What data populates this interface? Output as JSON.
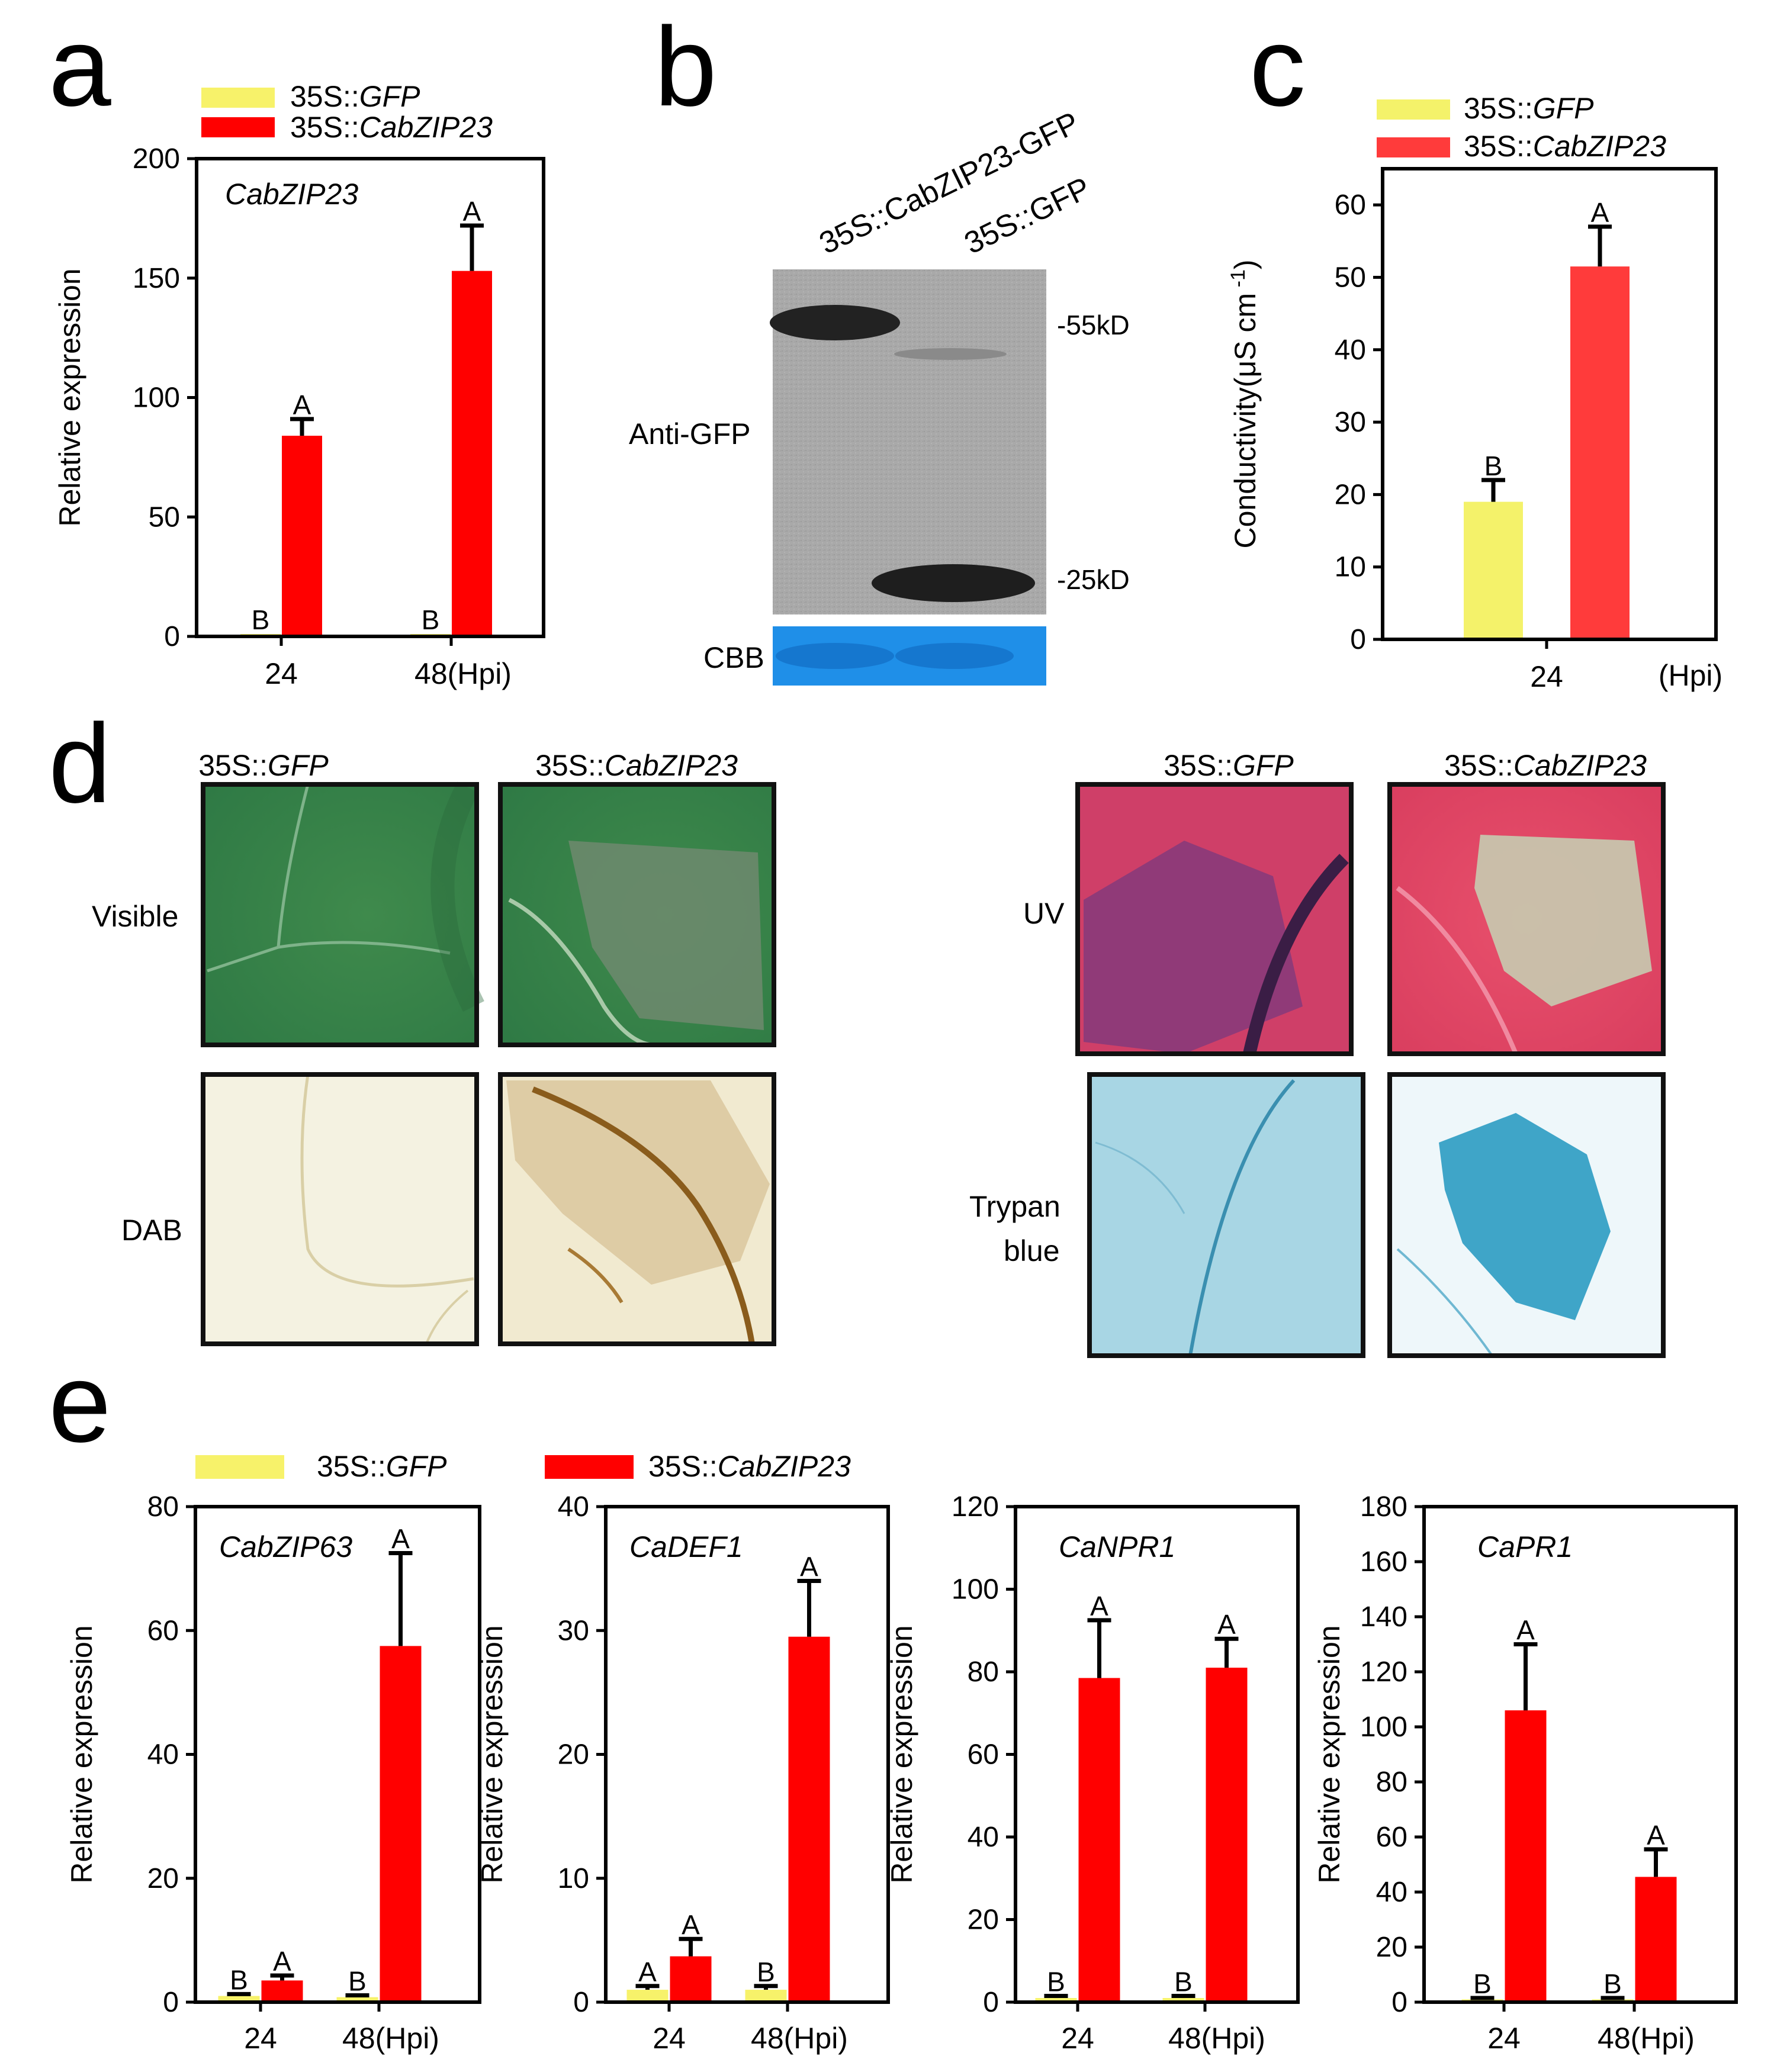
{
  "colors": {
    "gfp": "#f7f26a",
    "cabzip": "#ff0000",
    "cond_gfp": "#f4f26a",
    "cond_cabzip": "#ff3b3b",
    "cbb": "#1f8fe8"
  },
  "panel_letters": {
    "a": "a",
    "b": "b",
    "c": "c",
    "d": "d",
    "e": "e"
  },
  "legend": {
    "prefix": "35S::",
    "gfp": "GFP",
    "cabzip": "CabZIP23"
  },
  "chart_data": [
    {
      "id": "a",
      "type": "bar",
      "title": "CabZIP23",
      "ylabel": "Relative expression",
      "ylim": [
        0,
        200
      ],
      "yticks": [
        0,
        50,
        100,
        150,
        200
      ],
      "categories": [
        "24",
        "48(Hpi)"
      ],
      "series": [
        {
          "name": "35S::GFP",
          "values": [
            1,
            1
          ],
          "errors": [
            0,
            0
          ],
          "letters": [
            "B",
            "B"
          ]
        },
        {
          "name": "35S::CabZIP23",
          "values": [
            84,
            153
          ],
          "errors": [
            7,
            19
          ],
          "letters": [
            "A",
            "A"
          ]
        }
      ]
    },
    {
      "id": "c",
      "type": "bar",
      "title": "",
      "ylabel": "Conductivity(μS cm",
      "ylabel_sup": "-1",
      "ylabel_end": ")",
      "ylim": [
        0,
        65
      ],
      "yticks": [
        0,
        10,
        20,
        30,
        40,
        50,
        60
      ],
      "categories": [
        "24"
      ],
      "unit": "(Hpi)",
      "series": [
        {
          "name": "35S::GFP",
          "values": [
            19
          ],
          "errors": [
            3
          ],
          "letters": [
            "B"
          ]
        },
        {
          "name": "35S::CabZIP23",
          "values": [
            51.5
          ],
          "errors": [
            5.5
          ],
          "letters": [
            "A"
          ]
        }
      ]
    },
    {
      "id": "e1",
      "type": "bar",
      "title": "CabZIP63",
      "ylabel": "Relative expression",
      "ylim": [
        0,
        80
      ],
      "yticks": [
        0,
        20,
        40,
        60,
        80
      ],
      "categories": [
        "24",
        "48(Hpi)"
      ],
      "series": [
        {
          "name": "35S::GFP",
          "values": [
            1,
            0.8
          ],
          "errors": [
            0.3,
            0.3
          ],
          "letters": [
            "B",
            "B"
          ]
        },
        {
          "name": "35S::CabZIP23",
          "values": [
            3.5,
            57.5
          ],
          "errors": [
            0.8,
            15
          ],
          "letters": [
            "A",
            "A"
          ]
        }
      ]
    },
    {
      "id": "e2",
      "type": "bar",
      "title": "CaDEF1",
      "ylabel": "Relative expression",
      "ylim": [
        0,
        40
      ],
      "yticks": [
        0,
        10,
        20,
        30,
        40
      ],
      "categories": [
        "24",
        "48(Hpi)"
      ],
      "series": [
        {
          "name": "35S::GFP",
          "values": [
            1,
            1
          ],
          "errors": [
            0.3,
            0.3
          ],
          "letters": [
            "A",
            "B"
          ]
        },
        {
          "name": "35S::CabZIP23",
          "values": [
            3.7,
            29.5
          ],
          "errors": [
            1.4,
            4.5
          ],
          "letters": [
            "A",
            "A"
          ]
        }
      ]
    },
    {
      "id": "e3",
      "type": "bar",
      "title": "CaNPR1",
      "ylabel": "Relative expression",
      "ylim": [
        0,
        120
      ],
      "yticks": [
        0,
        20,
        40,
        60,
        80,
        100,
        120
      ],
      "categories": [
        "24",
        "48(Hpi)"
      ],
      "series": [
        {
          "name": "35S::GFP",
          "values": [
            1,
            1
          ],
          "errors": [
            0.5,
            0.5
          ],
          "letters": [
            "B",
            "B"
          ]
        },
        {
          "name": "35S::CabZIP23",
          "values": [
            78.5,
            81
          ],
          "errors": [
            14,
            7
          ],
          "letters": [
            "A",
            "A"
          ]
        }
      ]
    },
    {
      "id": "e4",
      "type": "bar",
      "title": "CaPR1",
      "ylabel": "Relative expression",
      "ylim": [
        0,
        180
      ],
      "yticks": [
        0,
        20,
        40,
        60,
        80,
        100,
        120,
        140,
        160,
        180
      ],
      "categories": [
        "24",
        "48(Hpi)"
      ],
      "series": [
        {
          "name": "35S::GFP",
          "values": [
            1,
            1
          ],
          "errors": [
            0.5,
            0.5
          ],
          "letters": [
            "B",
            "B"
          ]
        },
        {
          "name": "35S::CabZIP23",
          "values": [
            106,
            45.5
          ],
          "errors": [
            24,
            10
          ],
          "letters": [
            "A",
            "A"
          ]
        }
      ]
    }
  ],
  "blot": {
    "lane1": "35S::CabZIP23-GFP",
    "lane2": "35S::GFP",
    "antibody": "Anti-GFP",
    "loading": "CBB",
    "marker_high": "-55kD",
    "marker_low": "-25kD"
  },
  "leaf_panels": {
    "col_gfp_prefix": "35S::",
    "col_gfp": "GFP",
    "col_cab_prefix": "35S::",
    "col_cab": "CabZIP23",
    "row_visible": "Visible",
    "row_dab": "DAB",
    "row_uv": "UV",
    "row_trypan_1": "Trypan",
    "row_trypan_2": "blue"
  }
}
